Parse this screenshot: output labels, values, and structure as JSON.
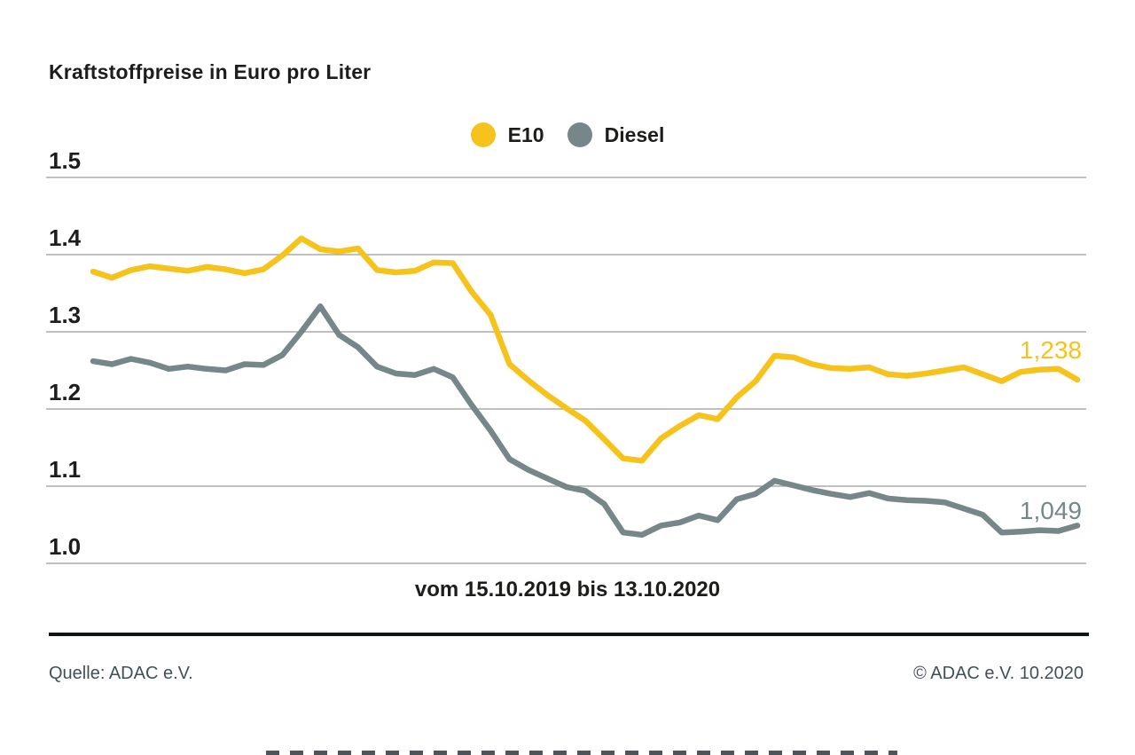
{
  "title": "Kraftstoffpreise in Euro pro Liter",
  "xaxis_label": "vom 15.10.2019 bis 13.10.2020",
  "footer": {
    "source": "Quelle: ADAC e.V.",
    "copyright": "© ADAC e.V. 10.2020"
  },
  "colors": {
    "e10": "#F5C31B",
    "diesel": "#76878A",
    "grid": "#9b9b9b",
    "text": "#1d1d1b",
    "footer_text": "#40505a"
  },
  "chart_data": {
    "type": "line",
    "title": "Kraftstoffpreise in Euro pro Liter",
    "xlabel": "vom 15.10.2019 bis 13.10.2020",
    "ylabel": "Euro pro Liter",
    "x": {
      "start": "15.10.2019",
      "end": "13.10.2020",
      "interval": "weekly",
      "points": 53
    },
    "ylim": [
      1.0,
      1.5
    ],
    "yticks": [
      "1.5",
      "1.4",
      "1.3",
      "1.2",
      "1.1",
      "1.0"
    ],
    "grid": true,
    "legend_position": "top-center",
    "series": [
      {
        "name": "E10",
        "color": "#F5C31B",
        "end_label": "1,238",
        "end_value": 1.238,
        "values": [
          1.378,
          1.37,
          1.38,
          1.385,
          1.382,
          1.379,
          1.384,
          1.381,
          1.376,
          1.381,
          1.399,
          1.421,
          1.407,
          1.404,
          1.408,
          1.38,
          1.377,
          1.379,
          1.39,
          1.389,
          1.352,
          1.322,
          1.258,
          1.237,
          1.218,
          1.201,
          1.185,
          1.161,
          1.136,
          1.133,
          1.162,
          1.178,
          1.192,
          1.187,
          1.215,
          1.236,
          1.269,
          1.267,
          1.258,
          1.253,
          1.252,
          1.254,
          1.245,
          1.243,
          1.246,
          1.25,
          1.254,
          1.245,
          1.236,
          1.248,
          1.251,
          1.252,
          1.238
        ]
      },
      {
        "name": "Diesel",
        "color": "#76878A",
        "end_label": "1,049",
        "end_value": 1.049,
        "values": [
          1.262,
          1.258,
          1.265,
          1.26,
          1.252,
          1.255,
          1.252,
          1.25,
          1.258,
          1.257,
          1.27,
          1.3,
          1.333,
          1.296,
          1.28,
          1.255,
          1.246,
          1.244,
          1.252,
          1.241,
          1.205,
          1.172,
          1.135,
          1.121,
          1.11,
          1.099,
          1.094,
          1.077,
          1.04,
          1.037,
          1.049,
          1.053,
          1.062,
          1.056,
          1.083,
          1.09,
          1.107,
          1.101,
          1.095,
          1.09,
          1.086,
          1.091,
          1.084,
          1.082,
          1.081,
          1.079,
          1.071,
          1.063,
          1.04,
          1.041,
          1.043,
          1.042,
          1.049
        ]
      }
    ]
  }
}
